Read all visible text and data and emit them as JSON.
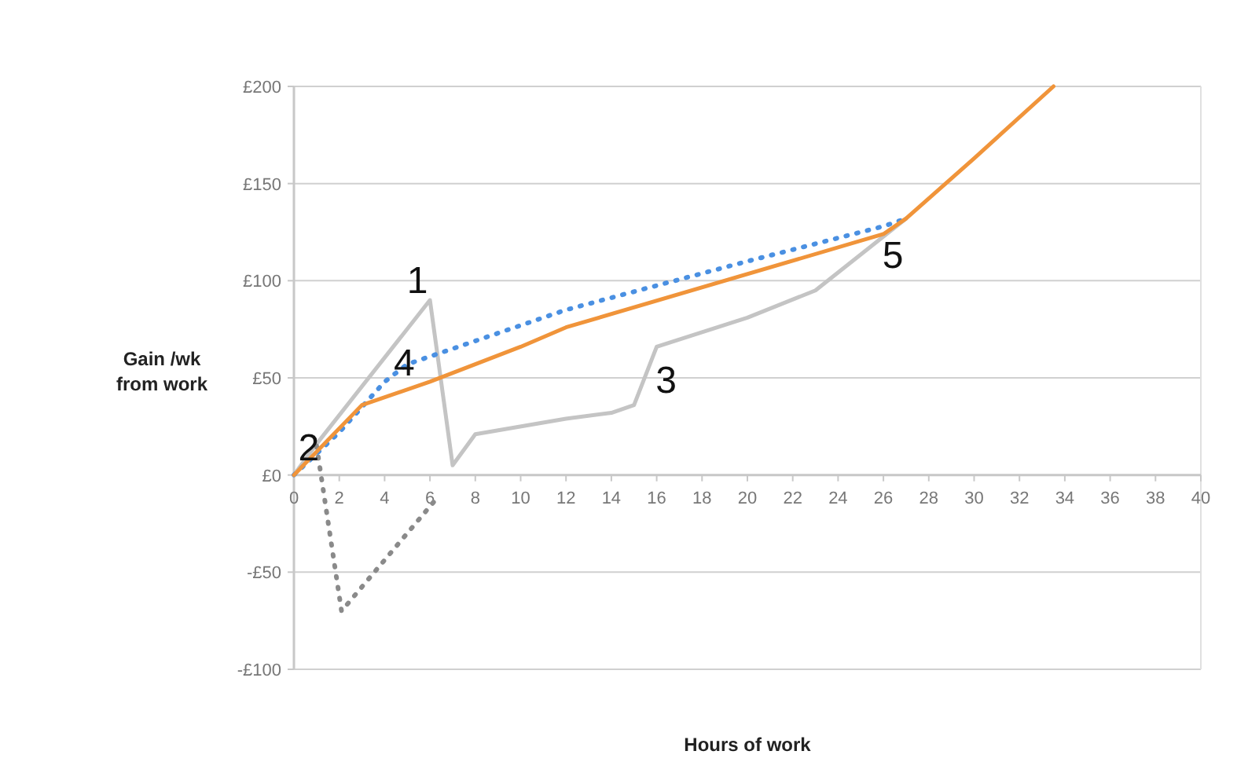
{
  "chart_data": {
    "type": "line",
    "xlabel": "Hours of work",
    "ylabel": "Gain /wk from work",
    "xlim": [
      0,
      40
    ],
    "xticks": [
      0,
      2,
      4,
      6,
      8,
      10,
      12,
      14,
      16,
      18,
      20,
      22,
      24,
      26,
      28,
      30,
      32,
      34,
      36,
      38,
      40
    ],
    "ylim": [
      -100,
      200
    ],
    "yticks": [
      {
        "value": -100,
        "label": "-£100"
      },
      {
        "value": -50,
        "label": "-£50"
      },
      {
        "value": 0,
        "label": "£0"
      },
      {
        "value": 50,
        "label": "£50"
      },
      {
        "value": 100,
        "label": "£100"
      },
      {
        "value": 150,
        "label": "£150"
      },
      {
        "value": 200,
        "label": "£200"
      }
    ],
    "grid": "y",
    "series": [
      {
        "color": "#c4c4c4",
        "line_style": "solid",
        "x": [
          0,
          1,
          6,
          7,
          8,
          12,
          14,
          15,
          16,
          20,
          23,
          27
        ],
        "values": [
          0,
          16,
          90,
          5,
          21,
          29,
          32,
          36,
          66,
          81,
          95,
          132
        ]
      },
      {
        "color": "#8a8a8a",
        "line_style": "dotted",
        "x": [
          1,
          2.1,
          6.3
        ],
        "values": [
          15,
          -70,
          -12
        ]
      },
      {
        "color": "#4a90e2",
        "line_style": "dotted",
        "x": [
          0,
          2,
          3,
          4,
          5,
          12,
          20,
          26,
          27
        ],
        "values": [
          0,
          22,
          35,
          48,
          57,
          85,
          110,
          128,
          132
        ]
      },
      {
        "color": "#f0943a",
        "line_style": "solid",
        "x": [
          0,
          3,
          6,
          8,
          10,
          12,
          26,
          27,
          30,
          33.5
        ],
        "values": [
          0,
          36,
          48,
          57,
          66,
          76,
          124,
          132,
          163,
          200
        ]
      }
    ],
    "annotations": [
      {
        "text": "1",
        "x": 6,
        "y": 90
      },
      {
        "text": "2",
        "x": 1,
        "y": 16
      },
      {
        "text": "3",
        "x": 16,
        "y": 66
      },
      {
        "text": "4",
        "x": 5,
        "y": 57
      },
      {
        "text": "5",
        "x": 26,
        "y": 128
      }
    ]
  }
}
